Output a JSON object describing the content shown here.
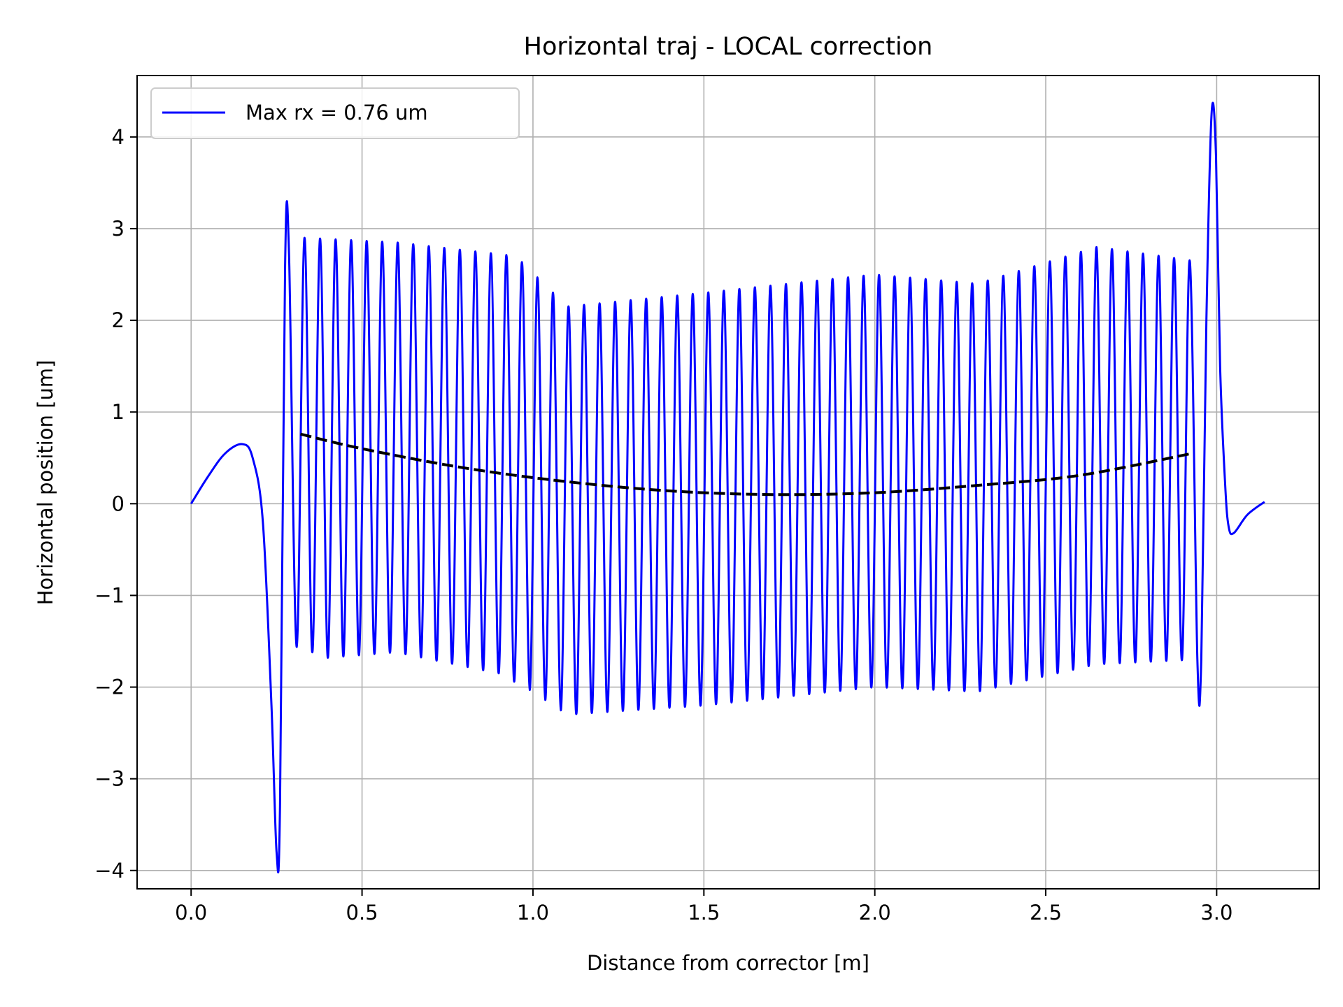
{
  "chart_data": {
    "type": "line",
    "title": "Horizontal traj - LOCAL correction",
    "xlabel": "Distance from corrector [m]",
    "ylabel": "Horizontal position [um]",
    "xlim": [
      -0.158,
      3.3
    ],
    "ylim": [
      -4.2,
      4.67
    ],
    "xticks": [
      0.0,
      0.5,
      1.0,
      1.5,
      2.0,
      2.5,
      3.0
    ],
    "xtick_labels": [
      "0.0",
      "0.5",
      "1.0",
      "1.5",
      "2.0",
      "2.5",
      "3.0"
    ],
    "yticks": [
      4,
      3,
      2,
      1,
      0,
      -1,
      -2,
      -3,
      -4
    ],
    "ytick_labels": [
      "4",
      "3",
      "2",
      "1",
      "0",
      "−1",
      "−2",
      "−3",
      "−4"
    ],
    "grid": true,
    "legend_position": "upper-left",
    "series": [
      {
        "name": "Max rx = 0.76 um",
        "color": "#0000ff",
        "style": "solid",
        "lead_in": {
          "x": [
            0.0,
            0.05,
            0.1,
            0.15,
            0.18,
            0.21,
            0.235,
            0.25,
            0.26,
            0.275
          ],
          "y": [
            0.0,
            0.3,
            0.55,
            0.65,
            0.5,
            -0.2,
            -2.2,
            -3.8,
            -3.3,
            2.6
          ]
        },
        "oscillation": {
          "x_range": [
            0.275,
            2.955
          ],
          "cycles": 59,
          "peaks": {
            "x": [
              0.28,
              0.33,
              0.6,
              0.95,
              1.1,
              1.5,
              2.0,
              2.3,
              2.65,
              2.93
            ],
            "y": [
              2.7,
              2.9,
              2.85,
              2.7,
              2.15,
              2.3,
              2.5,
              2.4,
              2.8,
              2.65
            ]
          },
          "troughs": {
            "x": [
              0.3,
              0.4,
              0.6,
              0.9,
              1.0,
              1.1,
              1.5,
              2.0,
              2.3,
              2.65,
              2.93
            ],
            "y": [
              -1.55,
              -1.68,
              -1.62,
              -1.85,
              -2.05,
              -2.3,
              -2.2,
              -2.0,
              -2.05,
              -1.75,
              -1.7
            ]
          }
        },
        "lead_out": {
          "x": [
            2.955,
            2.97,
            2.985,
            2.998,
            3.01,
            3.025,
            3.035,
            3.05,
            3.09,
            3.14
          ],
          "y": [
            -1.7,
            2.0,
            4.25,
            3.8,
            1.5,
            0.2,
            -0.25,
            -0.32,
            -0.12,
            0.02
          ]
        }
      },
      {
        "name": "",
        "color": "#000000",
        "style": "dashed",
        "x": [
          0.32,
          0.5,
          0.8,
          1.1,
          1.4,
          1.7,
          2.0,
          2.3,
          2.6,
          2.93
        ],
        "y": [
          0.76,
          0.6,
          0.39,
          0.24,
          0.14,
          0.1,
          0.12,
          0.2,
          0.31,
          0.55
        ]
      }
    ]
  }
}
